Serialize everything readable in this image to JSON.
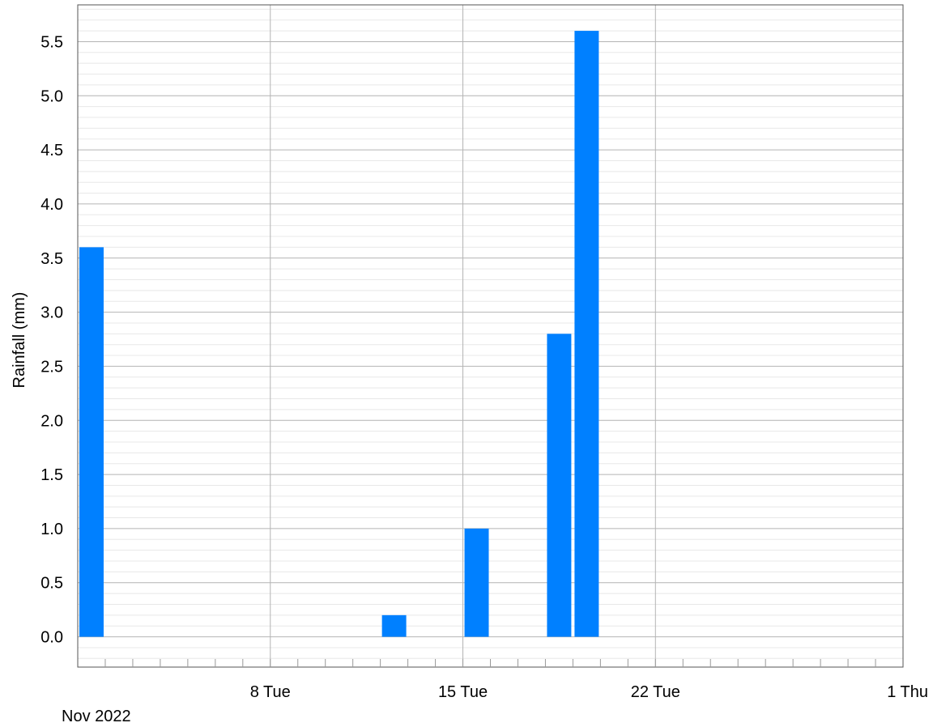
{
  "chart_data": {
    "type": "bar",
    "title": "",
    "xlabel": "",
    "ylabel": "Rainfall (mm)",
    "period_label": "Nov 2022",
    "x": [
      "2022-11-01",
      "2022-11-12",
      "2022-11-15",
      "2022-11-18",
      "2022-11-19"
    ],
    "values": [
      3.6,
      0.2,
      1.0,
      2.8,
      5.6
    ],
    "ylim": [
      -0.28,
      5.84
    ],
    "xlim": [
      "2022-11-01",
      "2022-12-01"
    ],
    "yticks": [
      {
        "value": 0.0,
        "label": "0.0"
      },
      {
        "value": 0.5,
        "label": "0.5"
      },
      {
        "value": 1.0,
        "label": "1.0"
      },
      {
        "value": 1.5,
        "label": "1.5"
      },
      {
        "value": 2.0,
        "label": "2.0"
      },
      {
        "value": 2.5,
        "label": "2.5"
      },
      {
        "value": 3.0,
        "label": "3.0"
      },
      {
        "value": 3.5,
        "label": "3.5"
      },
      {
        "value": 4.0,
        "label": "4.0"
      },
      {
        "value": 4.5,
        "label": "4.5"
      },
      {
        "value": 5.0,
        "label": "5.0"
      },
      {
        "value": 5.5,
        "label": "5.5"
      }
    ],
    "xticks": [
      {
        "date": "2022-11-08",
        "label": "8 Tue"
      },
      {
        "date": "2022-11-15",
        "label": "15 Tue"
      },
      {
        "date": "2022-11-22",
        "label": "22 Tue"
      },
      {
        "date": "2022-12-01",
        "label": "1 Thu"
      }
    ],
    "grid": true,
    "bar_color": "#0080ff"
  }
}
